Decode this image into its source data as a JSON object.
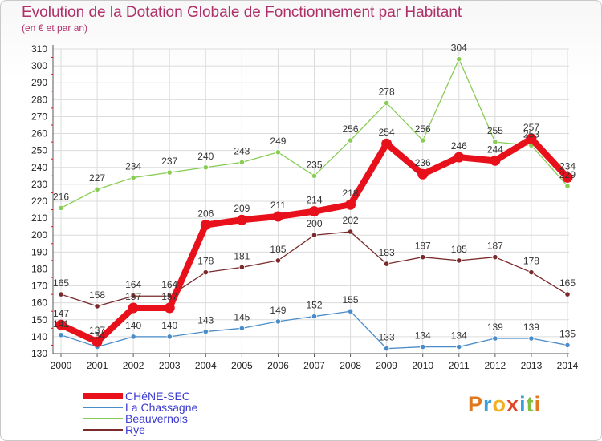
{
  "header": {
    "title": "Evolution de la Dotation Globale de Fonctionnement par Habitant",
    "subtitle": "(en € et par an)"
  },
  "logo": {
    "text": "Proxiti"
  },
  "chart_data": {
    "type": "line",
    "title": "Evolution de la Dotation Globale de Fonctionnement par Habitant",
    "subtitle": "(en € et par an)",
    "xlabel": "",
    "ylabel": "",
    "ylim": [
      130,
      310
    ],
    "ytick_step": 10,
    "grid": true,
    "legend_position": "bottom-left",
    "x": [
      "2000",
      "2001",
      "2002",
      "2003",
      "2004",
      "2005",
      "2006",
      "2007",
      "2008",
      "2009",
      "2010",
      "2011",
      "2012",
      "2013",
      "2014"
    ],
    "series": [
      {
        "name": "Beauvernois",
        "color": "#88cc55",
        "values": [
          216,
          227,
          234,
          237,
          240,
          243,
          249,
          235,
          256,
          278,
          256,
          304,
          255,
          253,
          229
        ]
      },
      {
        "name": "Rye",
        "color": "#7a2a2a",
        "values": [
          165,
          158,
          164,
          164,
          178,
          181,
          185,
          200,
          202,
          183,
          187,
          185,
          187,
          178,
          165
        ]
      },
      {
        "name": "La Chassagne",
        "color": "#4a8cc8",
        "values": [
          141,
          134,
          140,
          140,
          143,
          145,
          149,
          152,
          155,
          133,
          134,
          134,
          139,
          139,
          135
        ]
      },
      {
        "name": "CHéNE-SEC",
        "color": "#e8101a",
        "values": [
          147,
          137,
          157,
          157,
          206,
          209,
          211,
          214,
          218,
          254,
          236,
          246,
          244,
          257,
          234
        ]
      }
    ],
    "legend_order": [
      "CHéNE-SEC",
      "La Chassagne",
      "Beauvernois",
      "Rye"
    ]
  }
}
